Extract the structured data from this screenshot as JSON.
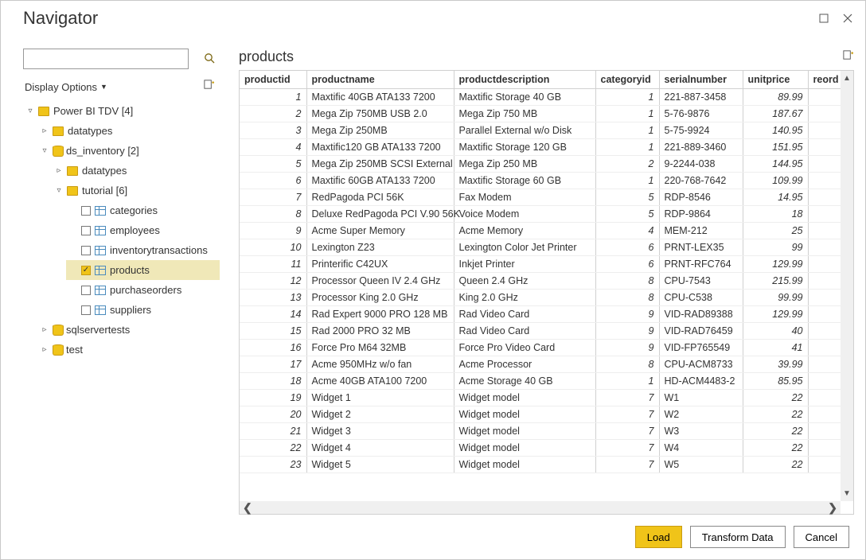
{
  "window_title": "Navigator",
  "search": {
    "placeholder": ""
  },
  "display_options_label": "Display Options",
  "tree": {
    "root": {
      "label": "Power BI TDV [4]",
      "expanded": true,
      "icon": "folder",
      "children": [
        {
          "label": "datatypes",
          "icon": "folder",
          "expanded": false,
          "children": []
        },
        {
          "label": "ds_inventory [2]",
          "icon": "db",
          "expanded": true,
          "children": [
            {
              "label": "datatypes",
              "icon": "folder",
              "expanded": false,
              "children": []
            },
            {
              "label": "tutorial [6]",
              "icon": "folder",
              "expanded": true,
              "children": [
                {
                  "label": "categories",
                  "icon": "table",
                  "checked": false
                },
                {
                  "label": "employees",
                  "icon": "table",
                  "checked": false
                },
                {
                  "label": "inventorytransactions",
                  "icon": "table",
                  "checked": false
                },
                {
                  "label": "products",
                  "icon": "table",
                  "checked": true,
                  "selected": true
                },
                {
                  "label": "purchaseorders",
                  "icon": "table",
                  "checked": false
                },
                {
                  "label": "suppliers",
                  "icon": "table",
                  "checked": false
                }
              ]
            }
          ]
        },
        {
          "label": "sqlservertests",
          "icon": "db",
          "expanded": false,
          "children": []
        },
        {
          "label": "test",
          "icon": "db",
          "expanded": false,
          "children": []
        }
      ]
    }
  },
  "preview": {
    "title": "products",
    "columns": [
      "productid",
      "productname",
      "productdescription",
      "categoryid",
      "serialnumber",
      "unitprice",
      "reord"
    ],
    "numeric_cols": [
      0,
      3,
      5
    ],
    "rows": [
      [
        1,
        "Maxtific 40GB ATA133 7200",
        "Maxtific Storage 40 GB",
        1,
        "221-887-3458",
        "89.99"
      ],
      [
        2,
        "Mega Zip 750MB USB 2.0",
        "Mega Zip 750 MB",
        1,
        "5-76-9876",
        "187.67"
      ],
      [
        3,
        "Mega Zip 250MB",
        "Parallel External w/o Disk",
        1,
        "5-75-9924",
        "140.95"
      ],
      [
        4,
        "Maxtific120 GB ATA133 7200",
        "Maxtific Storage 120 GB",
        1,
        "221-889-3460",
        "151.95"
      ],
      [
        5,
        "Mega Zip 250MB SCSI External",
        "Mega Zip 250 MB",
        2,
        "9-2244-038",
        "144.95"
      ],
      [
        6,
        "Maxtific 60GB ATA133 7200",
        "Maxtific Storage 60 GB",
        1,
        "220-768-7642",
        "109.99"
      ],
      [
        7,
        "RedPagoda PCI 56K",
        "Fax Modem",
        5,
        "RDP-8546",
        "14.95"
      ],
      [
        8,
        "Deluxe RedPagoda PCI V.90 56K",
        "Voice Modem",
        5,
        "RDP-9864",
        "18"
      ],
      [
        9,
        "Acme Super Memory",
        "Acme Memory",
        4,
        "MEM-212",
        "25"
      ],
      [
        10,
        "Lexington Z23",
        "Lexington Color Jet Printer",
        6,
        "PRNT-LEX35",
        "99"
      ],
      [
        11,
        "Printerific C42UX",
        "Inkjet Printer",
        6,
        "PRNT-RFC764",
        "129.99"
      ],
      [
        12,
        "Processor Queen IV 2.4 GHz",
        "Queen 2.4 GHz",
        8,
        "CPU-7543",
        "215.99"
      ],
      [
        13,
        "Processor King 2.0 GHz",
        "King 2.0 GHz",
        8,
        "CPU-C538",
        "99.99"
      ],
      [
        14,
        "Rad Expert 9000 PRO 128 MB",
        "Rad Video Card",
        9,
        "VID-RAD89388",
        "129.99"
      ],
      [
        15,
        "Rad 2000 PRO 32 MB",
        "Rad Video Card",
        9,
        "VID-RAD76459",
        "40"
      ],
      [
        16,
        "Force Pro M64 32MB",
        "Force Pro Video Card",
        9,
        "VID-FP765549",
        "41"
      ],
      [
        17,
        "Acme 950MHz w/o fan",
        "Acme Processor",
        8,
        "CPU-ACM8733",
        "39.99"
      ],
      [
        18,
        "Acme 40GB ATA100 7200",
        "Acme Storage 40 GB",
        1,
        "HD-ACM4483-2",
        "85.95"
      ],
      [
        19,
        "Widget 1",
        "Widget model",
        7,
        "W1",
        "22"
      ],
      [
        20,
        "Widget 2",
        "Widget model",
        7,
        "W2",
        "22"
      ],
      [
        21,
        "Widget 3",
        "Widget model",
        7,
        "W3",
        "22"
      ],
      [
        22,
        "Widget 4",
        "Widget model",
        7,
        "W4",
        "22"
      ],
      [
        23,
        "Widget 5",
        "Widget model",
        7,
        "W5",
        "22"
      ]
    ]
  },
  "buttons": {
    "load": "Load",
    "transform": "Transform Data",
    "cancel": "Cancel"
  },
  "colors": {
    "accent": "#f0c419",
    "border": "#d0d0d0",
    "selected_row": "#f0e8b8"
  }
}
